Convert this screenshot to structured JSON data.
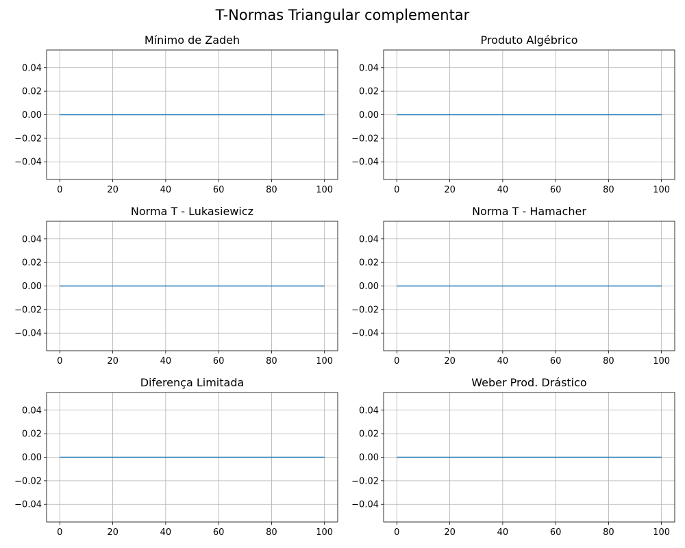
{
  "figure": {
    "title": "T-Normas Triangular complementar"
  },
  "style": {
    "line_color": "#1f77b4",
    "grid_color": "#b0b0b0",
    "axis_color": "#000000"
  },
  "chart_data": [
    {
      "type": "line",
      "title": "Mínimo de Zadeh",
      "xlabel": "",
      "ylabel": "",
      "xlim": [
        -5,
        105
      ],
      "ylim": [
        -0.055,
        0.055
      ],
      "xticks": [
        0,
        20,
        40,
        60,
        80,
        100
      ],
      "xtick_labels": [
        "0",
        "20",
        "40",
        "60",
        "80",
        "100"
      ],
      "yticks": [
        -0.04,
        -0.02,
        0.0,
        0.02,
        0.04
      ],
      "ytick_labels": [
        "−0.04",
        "−0.02",
        "0.00",
        "0.02",
        "0.04"
      ],
      "grid": true,
      "series": [
        {
          "x": [
            0,
            100
          ],
          "y": [
            0,
            0
          ]
        }
      ]
    },
    {
      "type": "line",
      "title": "Produto Algébrico",
      "xlabel": "",
      "ylabel": "",
      "xlim": [
        -5,
        105
      ],
      "ylim": [
        -0.055,
        0.055
      ],
      "xticks": [
        0,
        20,
        40,
        60,
        80,
        100
      ],
      "xtick_labels": [
        "0",
        "20",
        "40",
        "60",
        "80",
        "100"
      ],
      "yticks": [
        -0.04,
        -0.02,
        0.0,
        0.02,
        0.04
      ],
      "ytick_labels": [
        "−0.04",
        "−0.02",
        "0.00",
        "0.02",
        "0.04"
      ],
      "grid": true,
      "series": [
        {
          "x": [
            0,
            100
          ],
          "y": [
            0,
            0
          ]
        }
      ]
    },
    {
      "type": "line",
      "title": "Norma T - Lukasiewicz",
      "xlabel": "",
      "ylabel": "",
      "xlim": [
        -5,
        105
      ],
      "ylim": [
        -0.055,
        0.055
      ],
      "xticks": [
        0,
        20,
        40,
        60,
        80,
        100
      ],
      "xtick_labels": [
        "0",
        "20",
        "40",
        "60",
        "80",
        "100"
      ],
      "yticks": [
        -0.04,
        -0.02,
        0.0,
        0.02,
        0.04
      ],
      "ytick_labels": [
        "−0.04",
        "−0.02",
        "0.00",
        "0.02",
        "0.04"
      ],
      "grid": true,
      "series": [
        {
          "x": [
            0,
            100
          ],
          "y": [
            0,
            0
          ]
        }
      ]
    },
    {
      "type": "line",
      "title": "Norma T - Hamacher",
      "xlabel": "",
      "ylabel": "",
      "xlim": [
        -5,
        105
      ],
      "ylim": [
        -0.055,
        0.055
      ],
      "xticks": [
        0,
        20,
        40,
        60,
        80,
        100
      ],
      "xtick_labels": [
        "0",
        "20",
        "40",
        "60",
        "80",
        "100"
      ],
      "yticks": [
        -0.04,
        -0.02,
        0.0,
        0.02,
        0.04
      ],
      "ytick_labels": [
        "−0.04",
        "−0.02",
        "0.00",
        "0.02",
        "0.04"
      ],
      "grid": true,
      "series": [
        {
          "x": [
            0,
            100
          ],
          "y": [
            0,
            0
          ]
        }
      ]
    },
    {
      "type": "line",
      "title": "Diferença Limitada",
      "xlabel": "",
      "ylabel": "",
      "xlim": [
        -5,
        105
      ],
      "ylim": [
        -0.055,
        0.055
      ],
      "xticks": [
        0,
        20,
        40,
        60,
        80,
        100
      ],
      "xtick_labels": [
        "0",
        "20",
        "40",
        "60",
        "80",
        "100"
      ],
      "yticks": [
        -0.04,
        -0.02,
        0.0,
        0.02,
        0.04
      ],
      "ytick_labels": [
        "−0.04",
        "−0.02",
        "0.00",
        "0.02",
        "0.04"
      ],
      "grid": true,
      "series": [
        {
          "x": [
            0,
            100
          ],
          "y": [
            0,
            0
          ]
        }
      ]
    },
    {
      "type": "line",
      "title": "Weber Prod. Drástico",
      "xlabel": "",
      "ylabel": "",
      "xlim": [
        -5,
        105
      ],
      "ylim": [
        -0.055,
        0.055
      ],
      "xticks": [
        0,
        20,
        40,
        60,
        80,
        100
      ],
      "xtick_labels": [
        "0",
        "20",
        "40",
        "60",
        "80",
        "100"
      ],
      "yticks": [
        -0.04,
        -0.02,
        0.0,
        0.02,
        0.04
      ],
      "ytick_labels": [
        "−0.04",
        "−0.02",
        "0.00",
        "0.02",
        "0.04"
      ],
      "grid": true,
      "series": [
        {
          "x": [
            0,
            100
          ],
          "y": [
            0,
            0
          ]
        }
      ]
    }
  ]
}
